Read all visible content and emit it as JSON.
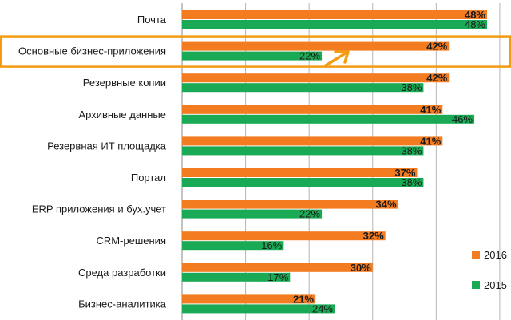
{
  "chart_data": {
    "type": "bar",
    "orientation": "horizontal",
    "categories": [
      "Почта",
      "Основные бизнес-приложения",
      "Резервные копии",
      "Архивные данные",
      "Резервная ИТ площадка",
      "Портал",
      "ERP приложения и бух.учет",
      "CRM-решения",
      "Среда разработки",
      "Бизнес-аналитика"
    ],
    "series": [
      {
        "name": "2016",
        "color": "#f47c20",
        "values": [
          48,
          42,
          42,
          41,
          41,
          37,
          34,
          32,
          30,
          21
        ],
        "labels": [
          "48%",
          "42%",
          "42%",
          "41%",
          "41%",
          "37%",
          "34%",
          "32%",
          "30%",
          "21%"
        ]
      },
      {
        "name": "2015",
        "color": "#1aaa55",
        "values": [
          48,
          22,
          38,
          46,
          38,
          38,
          22,
          16,
          17,
          24
        ],
        "labels": [
          "48%",
          "22%",
          "38%",
          "46%",
          "38%",
          "38%",
          "22%",
          "16%",
          "17%",
          "24%"
        ]
      }
    ],
    "xlim": [
      0,
      50
    ],
    "grid": true,
    "legend_position": "bottom-right",
    "highlighted_category": "Основные бизнес-приложения",
    "highlight_color": "#f39c12"
  }
}
